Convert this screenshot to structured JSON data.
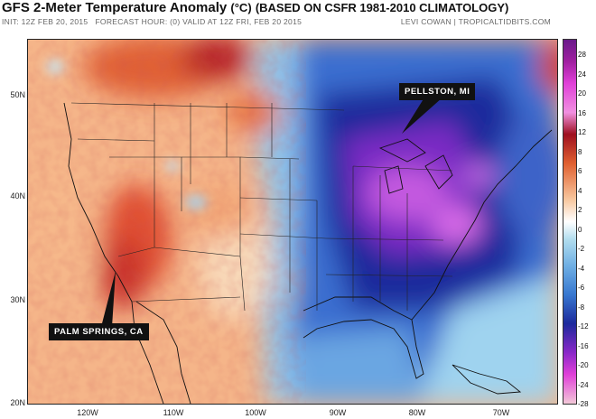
{
  "header": {
    "title_main": "GFS 2-Meter Temperature Anomaly",
    "title_unit": "(°C)",
    "title_basis": "(BASED ON CSFR 1981-2010 CLIMATOLOGY)",
    "init": "INIT: 12Z FEB 20, 2015",
    "forecast": "FORECAST HOUR: (0) VALID AT 12Z FRI, FEB 20 2015",
    "credit": "LEVI COWAN | TROPICALTIDBITS.COM"
  },
  "axes": {
    "lat_labels": [
      "50N",
      "40N",
      "30N",
      "20N"
    ],
    "lon_labels": [
      "120W",
      "110W",
      "100W",
      "90W",
      "80W",
      "70W"
    ]
  },
  "callouts": {
    "pellston": "PELLSTON, MI",
    "palm_springs": "PALM SPRINGS, CA"
  },
  "colorbar": {
    "labels": [
      "28",
      "24",
      "20",
      "16",
      "12",
      "8",
      "6",
      "4",
      "2",
      "0",
      "-2",
      "-4",
      "-6",
      "-8",
      "-12",
      "-16",
      "-20",
      "-24",
      "-28"
    ],
    "colors": {
      "warm_max": "#f2c8d8",
      "warm_dark": "#9e1020",
      "warm_mid": "#e06030",
      "warm_light": "#f8c8a0",
      "neutral": "#ffffff",
      "cool_light": "#b0dcee",
      "cool_mid": "#3878d0",
      "cool_dark": "#1d2a9c",
      "cold_purple": "#8a28c8",
      "cold_magenta": "#e040d8"
    }
  }
}
